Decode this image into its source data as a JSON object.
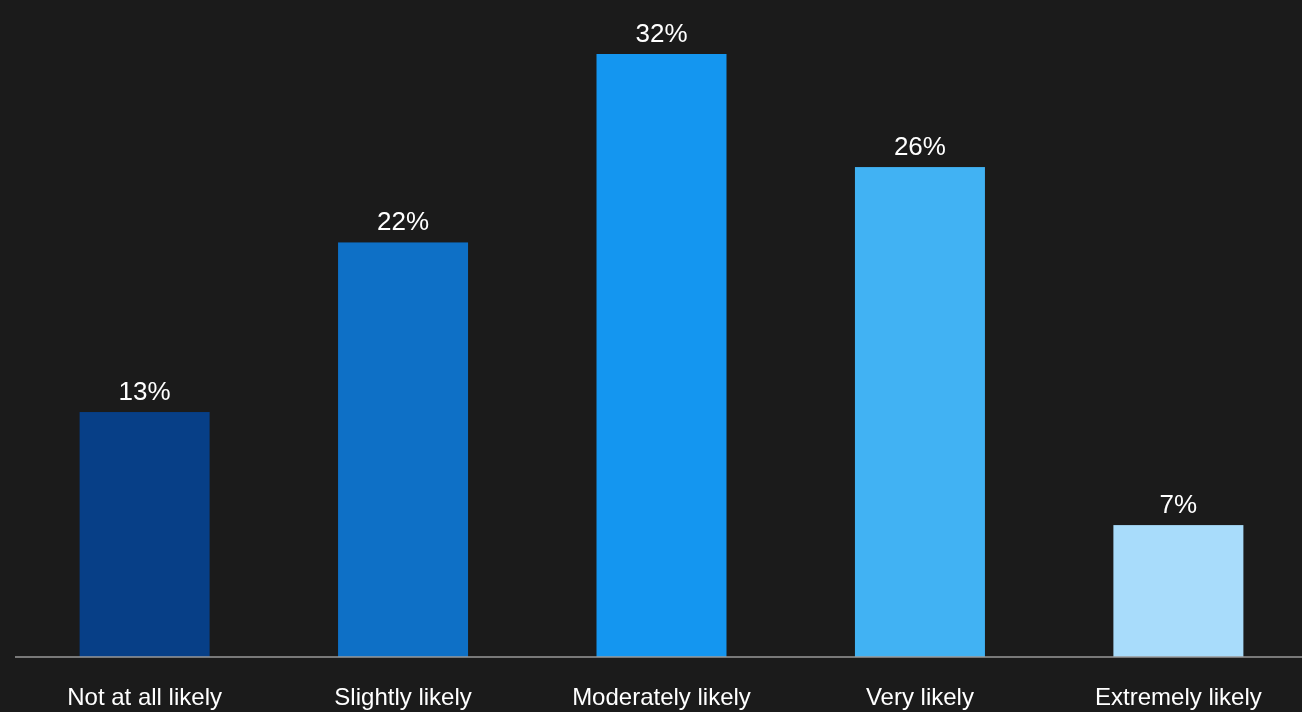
{
  "chart_data": {
    "type": "bar",
    "categories": [
      "Not at all likely",
      "Slightly likely",
      "Moderately likely",
      "Very likely",
      "Extremely likely"
    ],
    "values": [
      13,
      22,
      32,
      26,
      7
    ],
    "colors": [
      "#073f87",
      "#0e70c6",
      "#1496f0",
      "#41b2f3",
      "#a8dcfb"
    ],
    "value_labels": [
      "13%",
      "22%",
      "32%",
      "26%",
      "7%"
    ]
  }
}
